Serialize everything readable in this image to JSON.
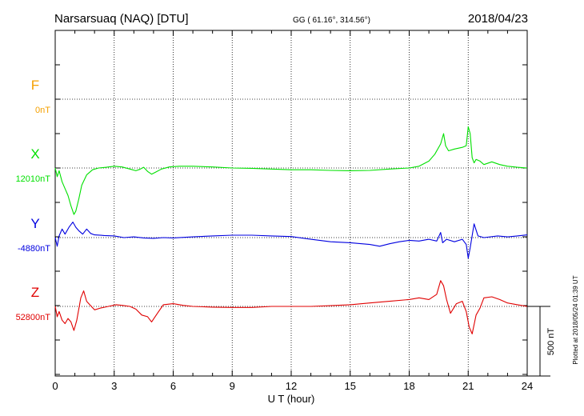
{
  "header": {
    "station": "Narsarsuaq (NAQ)  [DTU]",
    "coords": "GG ( 61.16°, 314.56°)",
    "date": "2018/04/23"
  },
  "plotted": "Plotted at 2018/05/24 01:39 UT",
  "scale_label": "500 nT",
  "chart_data": {
    "type": "line",
    "xlabel": "U T (hour)",
    "xlim": [
      0,
      24
    ],
    "xticks": [
      0,
      3,
      6,
      9,
      12,
      15,
      18,
      21,
      24
    ],
    "xtick_labels": [
      "0",
      "3",
      "6",
      "9",
      "12",
      "15",
      "18",
      "21",
      "24"
    ],
    "grid": "dotted",
    "units_per_tick_nT": 100,
    "scale_bar_nT": 500,
    "series": [
      {
        "name": "F",
        "baseline_label": "0nT",
        "color": "#f5a000",
        "points": []
      },
      {
        "name": "X",
        "baseline_label": "12010nT",
        "color": "#00e000",
        "points": [
          [
            0,
            0
          ],
          [
            0.1,
            -25
          ],
          [
            0.2,
            -8
          ],
          [
            0.35,
            -40
          ],
          [
            0.5,
            -60
          ],
          [
            0.65,
            -80
          ],
          [
            0.8,
            -110
          ],
          [
            0.95,
            -135
          ],
          [
            1.05,
            -125
          ],
          [
            1.2,
            -90
          ],
          [
            1.35,
            -50
          ],
          [
            1.6,
            -20
          ],
          [
            1.9,
            -5
          ],
          [
            2.2,
            0
          ],
          [
            2.6,
            2
          ],
          [
            3.0,
            5
          ],
          [
            3.4,
            3
          ],
          [
            3.8,
            -3
          ],
          [
            4.1,
            -8
          ],
          [
            4.3,
            -4
          ],
          [
            4.5,
            2
          ],
          [
            4.7,
            -10
          ],
          [
            4.9,
            -18
          ],
          [
            5.1,
            -12
          ],
          [
            5.4,
            -3
          ],
          [
            5.8,
            3
          ],
          [
            6.3,
            5
          ],
          [
            7.0,
            5
          ],
          [
            8.0,
            3
          ],
          [
            9.0,
            0
          ],
          [
            10,
            -1
          ],
          [
            11,
            -3
          ],
          [
            12,
            -5
          ],
          [
            13,
            -5
          ],
          [
            14,
            -7
          ],
          [
            15,
            -8
          ],
          [
            16,
            -7
          ],
          [
            17,
            -3
          ],
          [
            18,
            0
          ],
          [
            18.5,
            5
          ],
          [
            19.0,
            20
          ],
          [
            19.3,
            40
          ],
          [
            19.6,
            70
          ],
          [
            19.75,
            100
          ],
          [
            19.85,
            65
          ],
          [
            20.0,
            50
          ],
          [
            20.3,
            55
          ],
          [
            20.7,
            60
          ],
          [
            20.9,
            65
          ],
          [
            21.0,
            120
          ],
          [
            21.1,
            100
          ],
          [
            21.2,
            30
          ],
          [
            21.3,
            15
          ],
          [
            21.4,
            25
          ],
          [
            21.6,
            20
          ],
          [
            21.8,
            10
          ],
          [
            22.2,
            18
          ],
          [
            22.6,
            10
          ],
          [
            23.0,
            5
          ],
          [
            23.5,
            2
          ],
          [
            24,
            0
          ]
        ]
      },
      {
        "name": "Y",
        "baseline_label": "-4880nT",
        "color": "#0000e0",
        "points": [
          [
            0,
            0
          ],
          [
            0.1,
            -25
          ],
          [
            0.2,
            5
          ],
          [
            0.35,
            25
          ],
          [
            0.5,
            10
          ],
          [
            0.7,
            30
          ],
          [
            0.9,
            45
          ],
          [
            1.05,
            30
          ],
          [
            1.2,
            20
          ],
          [
            1.4,
            10
          ],
          [
            1.6,
            25
          ],
          [
            1.8,
            12
          ],
          [
            2.0,
            8
          ],
          [
            2.5,
            6
          ],
          [
            3.0,
            5
          ],
          [
            3.5,
            0
          ],
          [
            4.0,
            2
          ],
          [
            4.5,
            -1
          ],
          [
            5.0,
            -2
          ],
          [
            5.5,
            0
          ],
          [
            6.0,
            -1
          ],
          [
            7.0,
            2
          ],
          [
            8.0,
            5
          ],
          [
            9.0,
            7
          ],
          [
            10,
            7
          ],
          [
            11,
            5
          ],
          [
            12,
            3
          ],
          [
            13,
            -5
          ],
          [
            14,
            -12
          ],
          [
            15,
            -15
          ],
          [
            16,
            -20
          ],
          [
            16.5,
            -25
          ],
          [
            17,
            -18
          ],
          [
            17.5,
            -12
          ],
          [
            18,
            -8
          ],
          [
            18.5,
            -10
          ],
          [
            19.0,
            -5
          ],
          [
            19.4,
            -10
          ],
          [
            19.6,
            15
          ],
          [
            19.7,
            -15
          ],
          [
            19.9,
            -5
          ],
          [
            20.3,
            -12
          ],
          [
            20.7,
            -5
          ],
          [
            20.9,
            -20
          ],
          [
            21.0,
            -60
          ],
          [
            21.1,
            -30
          ],
          [
            21.3,
            40
          ],
          [
            21.5,
            5
          ],
          [
            21.8,
            0
          ],
          [
            22.5,
            5
          ],
          [
            23,
            2
          ],
          [
            23.5,
            5
          ],
          [
            24,
            8
          ]
        ]
      },
      {
        "name": "Z",
        "baseline_label": "52800nT",
        "color": "#e00000",
        "points": [
          [
            0,
            0
          ],
          [
            0.1,
            -30
          ],
          [
            0.2,
            -15
          ],
          [
            0.35,
            -40
          ],
          [
            0.5,
            -50
          ],
          [
            0.65,
            -35
          ],
          [
            0.8,
            -45
          ],
          [
            0.95,
            -70
          ],
          [
            1.1,
            -40
          ],
          [
            1.3,
            25
          ],
          [
            1.45,
            45
          ],
          [
            1.6,
            15
          ],
          [
            1.8,
            2
          ],
          [
            2.0,
            -10
          ],
          [
            2.3,
            -5
          ],
          [
            2.7,
            0
          ],
          [
            3.1,
            5
          ],
          [
            3.4,
            3
          ],
          [
            3.8,
            0
          ],
          [
            4.1,
            -8
          ],
          [
            4.4,
            -25
          ],
          [
            4.7,
            -30
          ],
          [
            4.9,
            -45
          ],
          [
            5.2,
            -20
          ],
          [
            5.5,
            5
          ],
          [
            6.0,
            8
          ],
          [
            6.5,
            3
          ],
          [
            7.0,
            0
          ],
          [
            8,
            -2
          ],
          [
            9,
            -3
          ],
          [
            10,
            -3
          ],
          [
            11,
            0
          ],
          [
            12,
            0
          ],
          [
            13,
            0
          ],
          [
            14,
            2
          ],
          [
            15,
            5
          ],
          [
            16,
            10
          ],
          [
            17,
            15
          ],
          [
            18,
            20
          ],
          [
            18.5,
            25
          ],
          [
            19.0,
            20
          ],
          [
            19.4,
            35
          ],
          [
            19.6,
            75
          ],
          [
            19.75,
            60
          ],
          [
            19.9,
            20
          ],
          [
            20.1,
            -20
          ],
          [
            20.4,
            8
          ],
          [
            20.7,
            15
          ],
          [
            20.9,
            -15
          ],
          [
            21.05,
            -60
          ],
          [
            21.2,
            -80
          ],
          [
            21.4,
            -25
          ],
          [
            21.6,
            -5
          ],
          [
            21.8,
            25
          ],
          [
            22.2,
            28
          ],
          [
            22.6,
            20
          ],
          [
            23.0,
            10
          ],
          [
            23.5,
            5
          ],
          [
            24,
            0
          ]
        ]
      }
    ]
  }
}
